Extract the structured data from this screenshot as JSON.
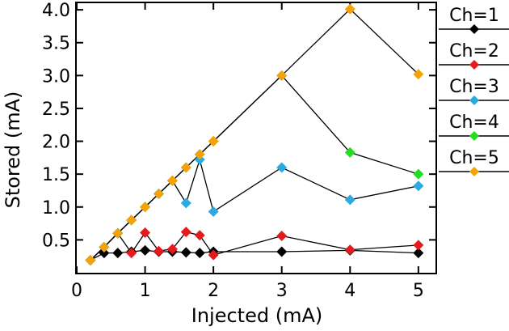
{
  "chart_data": {
    "type": "line",
    "xlabel": "Injected (mA)",
    "ylabel": "Stored (mA)",
    "xlim": [
      0,
      5.25
    ],
    "ylim": [
      0,
      4.1
    ],
    "xticks": [
      0,
      1,
      2,
      3,
      4,
      5
    ],
    "xtick_labels": [
      "0",
      "1",
      "2",
      "3",
      "4",
      "5"
    ],
    "yticks": [
      0.5,
      1.0,
      1.5,
      2.0,
      2.5,
      3.0,
      3.5,
      4.0
    ],
    "ytick_labels": [
      "0.5",
      "1.0",
      "1.5",
      "2.0",
      "2.5",
      "3.0",
      "3.5",
      "4.0"
    ],
    "grid": false,
    "legend_position": "right",
    "series": [
      {
        "name": "Ch=1",
        "color": "#000000",
        "x": [
          0.2,
          0.4,
          0.6,
          0.8,
          1.0,
          1.2,
          1.4,
          1.6,
          1.8,
          2.0,
          3.0,
          4.0,
          5.0
        ],
        "y": [
          0.19,
          0.3,
          0.3,
          0.32,
          0.34,
          0.32,
          0.32,
          0.31,
          0.3,
          0.32,
          0.32,
          0.34,
          0.3
        ]
      },
      {
        "name": "Ch=2",
        "color": "#e41a1c",
        "x": [
          0.2,
          0.4,
          0.6,
          0.8,
          1.0,
          1.2,
          1.4,
          1.6,
          1.8,
          2.0,
          3.0,
          4.0,
          5.0
        ],
        "y": [
          0.19,
          0.39,
          0.6,
          0.3,
          0.61,
          0.33,
          0.36,
          0.62,
          0.57,
          0.27,
          0.56,
          0.35,
          0.42
        ]
      },
      {
        "name": "Ch=3",
        "color": "#29abe2",
        "x": [
          0.2,
          0.4,
          0.6,
          0.8,
          1.0,
          1.2,
          1.4,
          1.6,
          1.8,
          2.0,
          3.0,
          4.0,
          5.0
        ],
        "y": [
          0.19,
          0.39,
          0.6,
          0.8,
          1.0,
          1.2,
          1.4,
          1.06,
          1.72,
          0.93,
          1.6,
          1.11,
          1.32
        ]
      },
      {
        "name": "Ch=4",
        "color": "#22dd22",
        "x": [
          0.2,
          0.4,
          0.6,
          0.8,
          1.0,
          1.2,
          1.4,
          1.6,
          1.8,
          2.0,
          3.0,
          4.0,
          5.0
        ],
        "y": [
          0.19,
          0.39,
          0.6,
          0.8,
          1.0,
          1.2,
          1.4,
          1.6,
          1.8,
          2.0,
          3.0,
          1.83,
          1.5
        ]
      },
      {
        "name": "Ch=5",
        "color": "#f5a20a",
        "x": [
          0.2,
          0.4,
          0.6,
          0.8,
          1.0,
          1.2,
          1.4,
          1.6,
          1.8,
          2.0,
          3.0,
          4.0,
          5.0
        ],
        "y": [
          0.19,
          0.39,
          0.6,
          0.8,
          1.0,
          1.2,
          1.4,
          1.6,
          1.8,
          2.0,
          3.0,
          4.01,
          3.02
        ]
      }
    ]
  }
}
